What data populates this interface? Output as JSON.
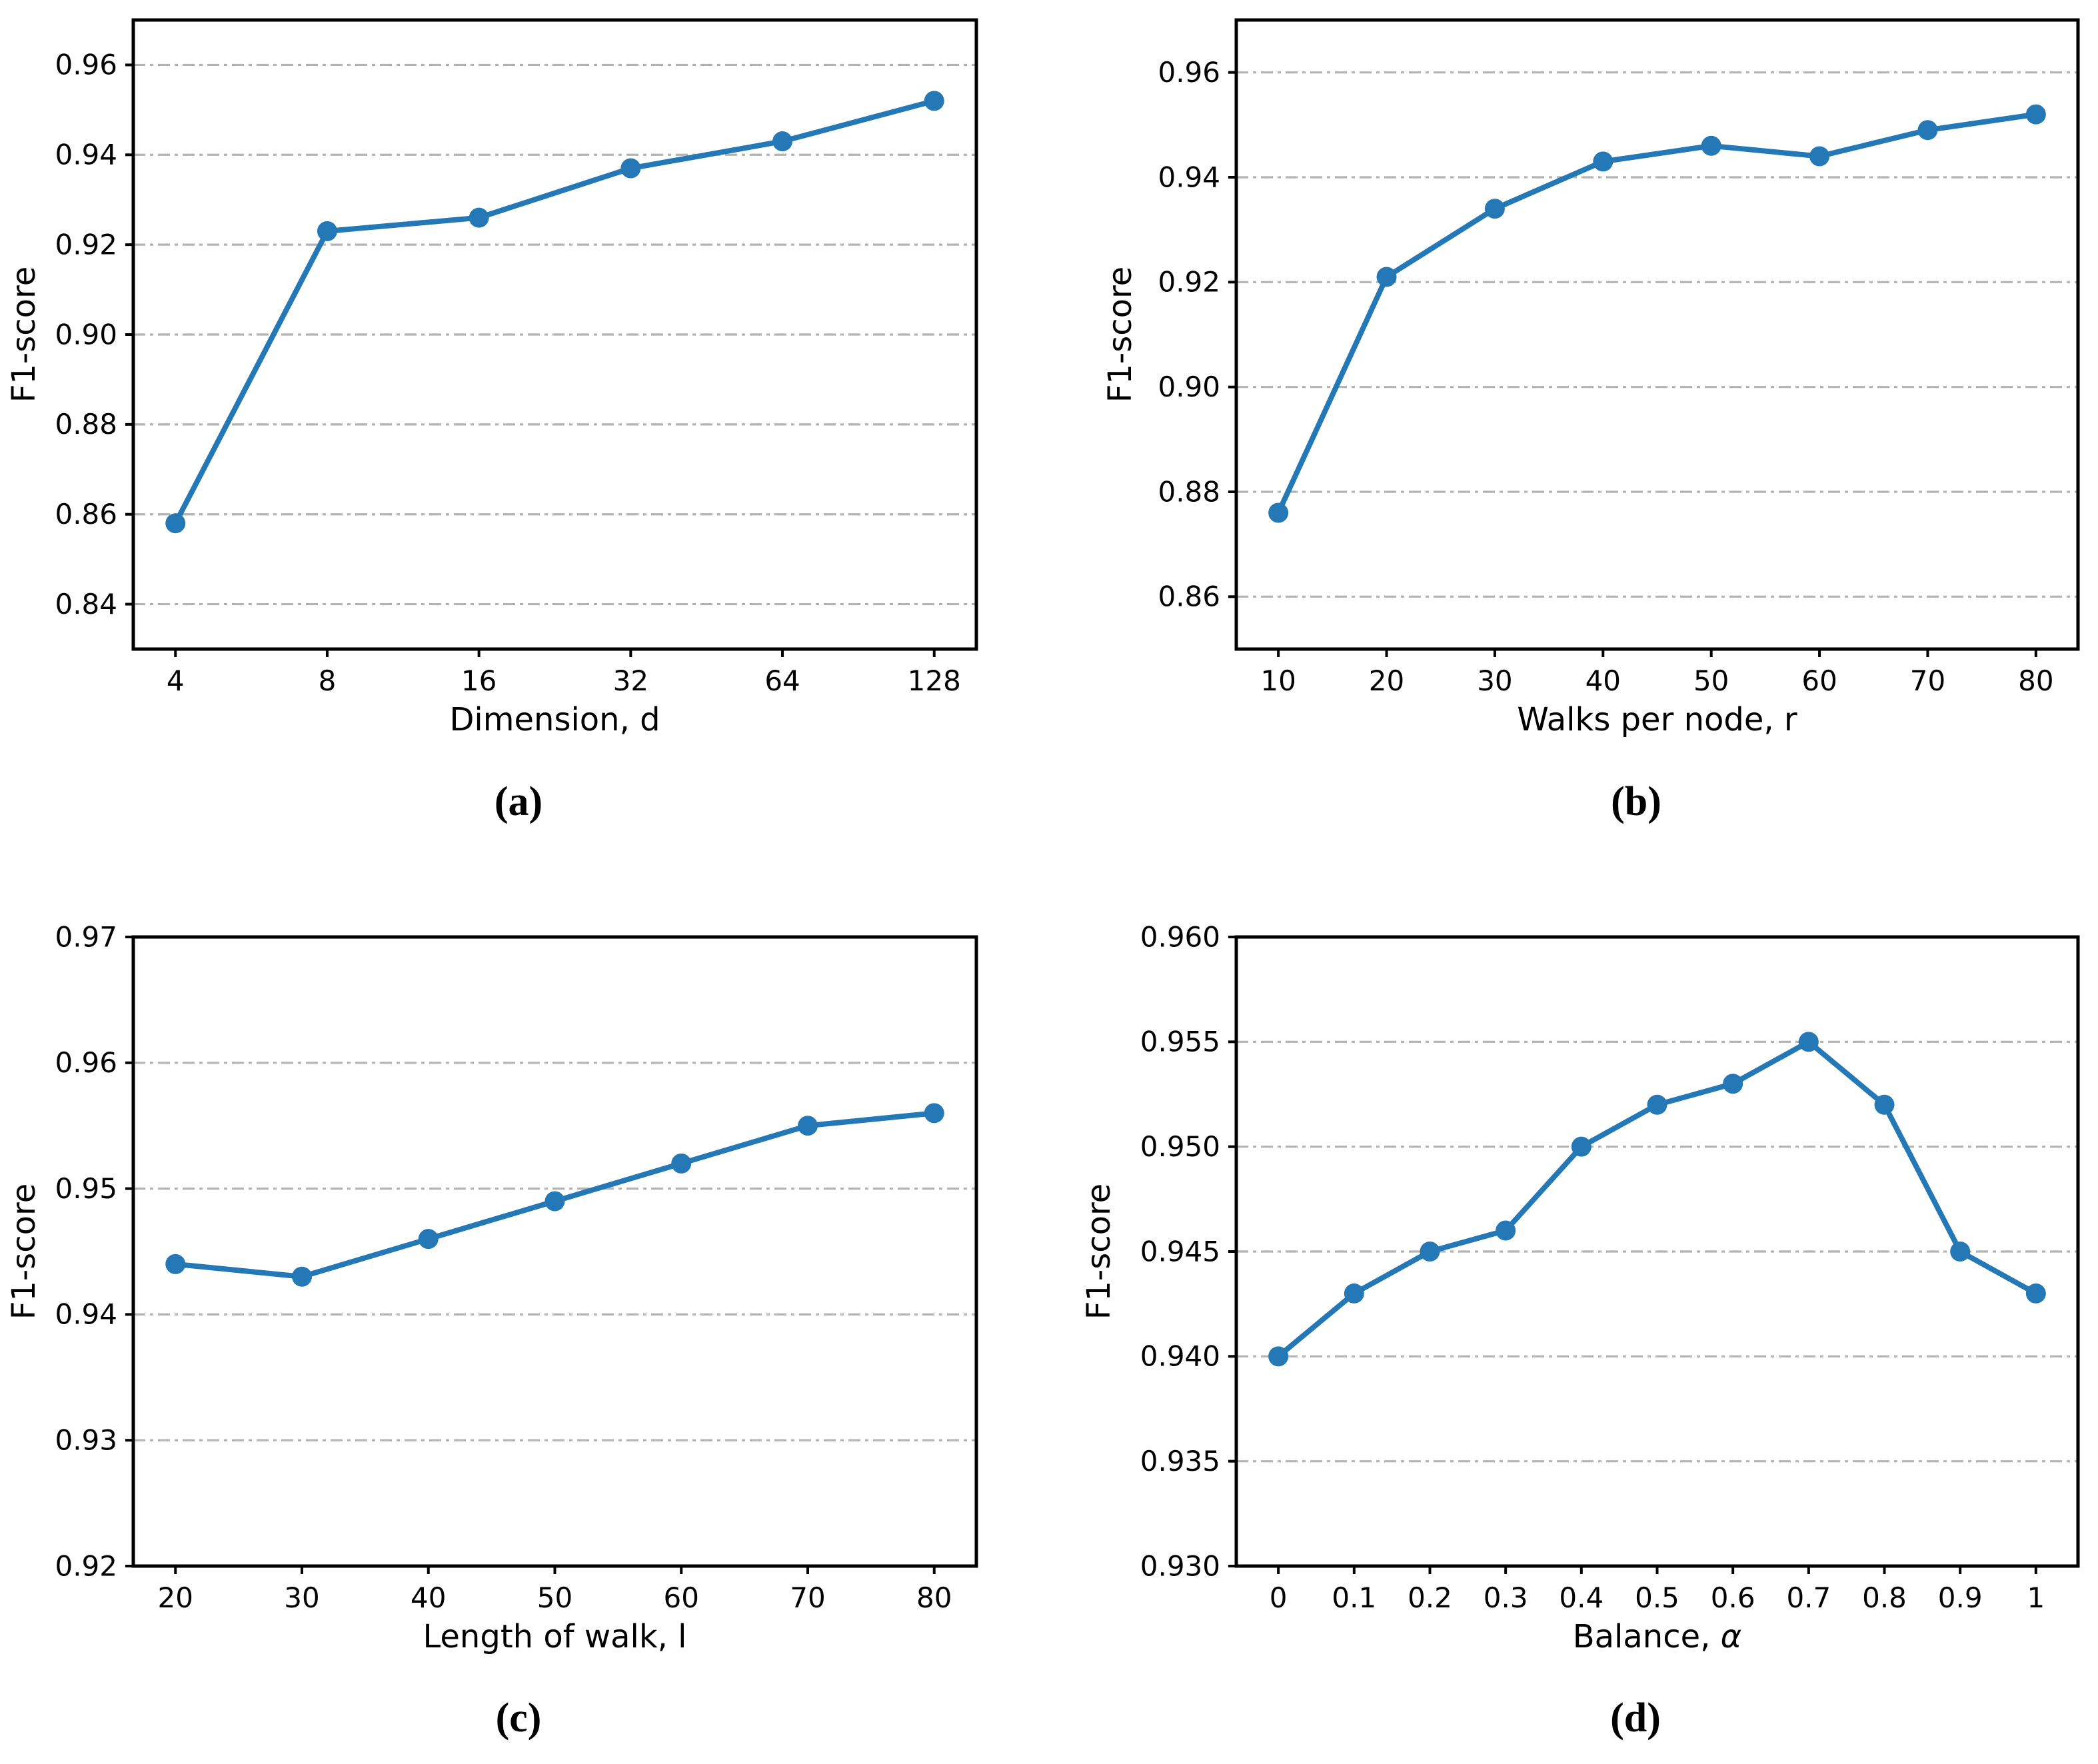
{
  "figure": {
    "background": "#ffffff",
    "accent_color": "#2378b5",
    "grid_color": "#b3b3b3",
    "text_color": "#000000"
  },
  "captions": {
    "a": "(a)",
    "b": "(b)",
    "c": "(c)",
    "d": "(d)"
  },
  "chart_data": [
    {
      "id": "a",
      "type": "line",
      "title": "",
      "xlabel": "Dimension, d",
      "ylabel": "F1-score",
      "categories": [
        "4",
        "8",
        "16",
        "32",
        "64",
        "128"
      ],
      "values": [
        0.858,
        0.923,
        0.926,
        0.937,
        0.943,
        0.952
      ],
      "ylim": [
        0.83,
        0.97
      ],
      "yticks": [
        0.84,
        0.86,
        0.88,
        0.9,
        0.92,
        0.94,
        0.96
      ],
      "ytick_labels": [
        "0.84",
        "0.86",
        "0.88",
        "0.90",
        "0.92",
        "0.94",
        "0.96"
      ],
      "grid": "horizontal-dashdot",
      "legend": "none",
      "line_color": "#2378b5",
      "marker": "circle"
    },
    {
      "id": "b",
      "type": "line",
      "title": "",
      "xlabel": "Walks per node, r",
      "ylabel": "F1-score",
      "categories": [
        "10",
        "20",
        "30",
        "40",
        "50",
        "60",
        "70",
        "80"
      ],
      "values": [
        0.876,
        0.921,
        0.934,
        0.943,
        0.946,
        0.944,
        0.949,
        0.952
      ],
      "ylim": [
        0.85,
        0.97
      ],
      "yticks": [
        0.86,
        0.88,
        0.9,
        0.92,
        0.94,
        0.96
      ],
      "ytick_labels": [
        "0.86",
        "0.88",
        "0.90",
        "0.92",
        "0.94",
        "0.96"
      ],
      "grid": "horizontal-dashdot",
      "legend": "none",
      "line_color": "#2378b5",
      "marker": "circle"
    },
    {
      "id": "c",
      "type": "line",
      "title": "",
      "xlabel": "Length of walk, l",
      "ylabel": "F1-score",
      "categories": [
        "20",
        "30",
        "40",
        "50",
        "60",
        "70",
        "80"
      ],
      "values": [
        0.944,
        0.943,
        0.946,
        0.949,
        0.952,
        0.955,
        0.956
      ],
      "ylim": [
        0.92,
        0.97
      ],
      "yticks": [
        0.92,
        0.93,
        0.94,
        0.95,
        0.96,
        0.97
      ],
      "ytick_labels": [
        "0.92",
        "0.93",
        "0.94",
        "0.95",
        "0.96",
        "0.97"
      ],
      "grid": "horizontal-dashdot",
      "legend": "none",
      "line_color": "#2378b5",
      "marker": "circle"
    },
    {
      "id": "d",
      "type": "line",
      "title": "",
      "xlabel": "Balance, α",
      "ylabel": "F1-score",
      "categories": [
        "0",
        "0.1",
        "0.2",
        "0.3",
        "0.4",
        "0.5",
        "0.6",
        "0.7",
        "0.8",
        "0.9",
        "1"
      ],
      "values": [
        0.94,
        0.943,
        0.945,
        0.946,
        0.95,
        0.952,
        0.953,
        0.955,
        0.952,
        0.945,
        0.943
      ],
      "ylim": [
        0.93,
        0.96
      ],
      "yticks": [
        0.93,
        0.935,
        0.94,
        0.945,
        0.95,
        0.955,
        0.96
      ],
      "ytick_labels": [
        "0.930",
        "0.935",
        "0.940",
        "0.945",
        "0.950",
        "0.955",
        "0.960"
      ],
      "grid": "horizontal-dashdot",
      "legend": "none",
      "line_color": "#2378b5",
      "marker": "circle"
    }
  ]
}
